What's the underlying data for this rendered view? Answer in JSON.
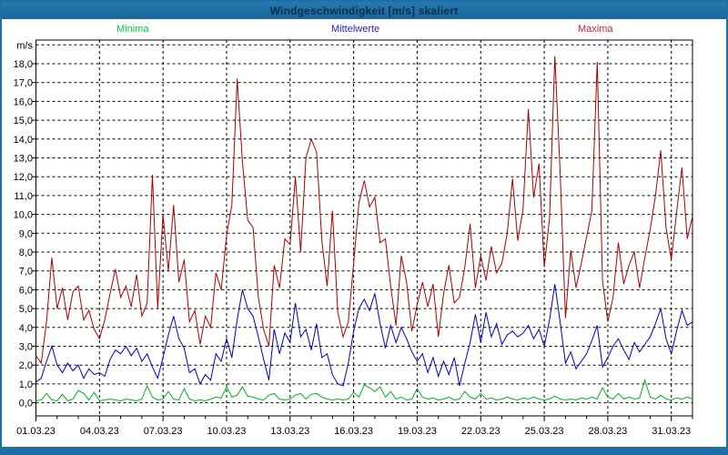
{
  "window": {
    "title": "Windgeschwindigkeit [m/s] skaliert"
  },
  "legend": [
    {
      "label": "Minima",
      "color": "#00cc44"
    },
    {
      "label": "Mittelwerte",
      "color": "#2222cc"
    },
    {
      "label": "Maxima",
      "color": "#cc2233"
    }
  ],
  "colors": {
    "frame": "#1e6fa5",
    "plot_border": "#000000",
    "gridline": "#000000",
    "background": "#ffffff"
  },
  "chart_data": {
    "type": "line",
    "title": "Windgeschwindigkeit [m/s] skaliert",
    "ylabel": "m/s",
    "y_unit_label": "m/s",
    "grid": "dashed both axes",
    "legend_position": "top",
    "ylim": [
      -0.7,
      19.3
    ],
    "y_gridlines": "every 1.0 from 0.0 to 19.0",
    "y_tick_labels": [
      "0,0",
      "1,0",
      "2,0",
      "3,0",
      "4,0",
      "5,0",
      "6,0",
      "7,0",
      "8,0",
      "9,0",
      "10,0",
      "11,0",
      "12,0",
      "13,0",
      "14,0",
      "15,0",
      "16,0",
      "17,0",
      "18,0"
    ],
    "x_range_days": [
      0,
      31
    ],
    "x_major_tick_interval_days": 3,
    "x_minor_tick_interval_days": 1,
    "x_tick_labels": [
      "01.03.23",
      "04.03.23",
      "07.03.23",
      "10.03.23",
      "13.03.23",
      "16.03.23",
      "19.03.23",
      "22.03.23",
      "25.03.23",
      "28.03.23",
      "31.03.23"
    ],
    "x_step_days": 0.25,
    "series": [
      {
        "name": "Minima",
        "color": "#00b022",
        "values": [
          0.1,
          0.15,
          0.5,
          0.15,
          0.1,
          0.45,
          0.1,
          0.2,
          0.65,
          0.5,
          0.15,
          0.55,
          0.1,
          0.15,
          0.2,
          0.15,
          0.1,
          0.2,
          0.15,
          0.1,
          0.2,
          0.9,
          0.3,
          0.15,
          0.2,
          0.6,
          0.2,
          0.15,
          0.75,
          0.2,
          0.1,
          0.15,
          0.1,
          0.2,
          0.3,
          0.25,
          0.85,
          0.3,
          0.4,
          0.85,
          0.35,
          0.3,
          0.2,
          0.15,
          0.4,
          0.5,
          0.2,
          0.15,
          0.2,
          0.4,
          0.5,
          0.2,
          0.45,
          0.5,
          0.3,
          0.2,
          0.15,
          0.2,
          0.15,
          0.2,
          0.55,
          0.3,
          0.95,
          0.8,
          0.6,
          0.85,
          0.3,
          0.6,
          0.2,
          0.3,
          0.15,
          0.2,
          0.75,
          0.3,
          0.2,
          0.25,
          0.15,
          0.2,
          0.3,
          0.15,
          0.2,
          0.6,
          0.3,
          0.2,
          0.5,
          0.2,
          0.25,
          0.15,
          0.2,
          0.3,
          0.2,
          0.15,
          0.25,
          0.2,
          0.3,
          0.2,
          0.15,
          0.2,
          0.35,
          0.2,
          0.15,
          0.2,
          0.15,
          0.25,
          0.2,
          0.3,
          0.2,
          0.8,
          0.3,
          0.2,
          0.5,
          0.2,
          0.3,
          0.2,
          0.25,
          1.2,
          0.3,
          0.2,
          0.4,
          0.2,
          0.15,
          0.25,
          0.2,
          0.3,
          0.2
        ]
      },
      {
        "name": "Mittelwerte",
        "color": "#0000bb",
        "values": [
          1.1,
          1.3,
          2.2,
          3.0,
          2.0,
          1.6,
          2.1,
          1.7,
          2.0,
          1.3,
          1.8,
          1.5,
          1.6,
          1.4,
          2.3,
          2.8,
          2.6,
          3.0,
          2.5,
          2.9,
          2.2,
          2.6,
          1.9,
          1.3,
          2.4,
          3.6,
          4.6,
          3.4,
          2.9,
          1.6,
          1.8,
          1.0,
          1.5,
          1.2,
          2.6,
          2.2,
          3.4,
          2.4,
          4.4,
          6.0,
          5.0,
          4.6,
          3.5,
          2.3,
          1.2,
          3.9,
          2.6,
          3.7,
          3.2,
          5.3,
          3.5,
          3.9,
          2.8,
          4.2,
          2.4,
          2.6,
          1.5,
          1.0,
          0.9,
          2.1,
          3.8,
          5.0,
          5.5,
          4.9,
          5.8,
          4.2,
          2.9,
          4.1,
          3.2,
          4.0,
          3.4,
          2.7,
          2.2,
          2.6,
          1.6,
          2.4,
          1.4,
          2.2,
          1.5,
          2.4,
          0.9,
          2.1,
          3.2,
          4.7,
          3.2,
          4.8,
          3.5,
          4.2,
          3.1,
          3.6,
          3.8,
          3.5,
          3.7,
          4.1,
          3.4,
          3.9,
          3.0,
          4.4,
          6.3,
          4.3,
          2.1,
          2.7,
          1.8,
          2.2,
          2.6,
          3.3,
          4.1,
          1.9,
          2.4,
          3.0,
          3.4,
          2.8,
          2.3,
          3.2,
          2.7,
          3.1,
          3.5,
          4.2,
          5.0,
          3.4,
          2.6,
          3.8,
          4.9,
          4.1,
          4.3
        ]
      },
      {
        "name": "Maxima",
        "color": "#aa0000",
        "values": [
          2.5,
          2.1,
          4.3,
          7.7,
          5.0,
          6.1,
          4.4,
          5.9,
          6.2,
          4.4,
          4.9,
          3.9,
          3.4,
          4.4,
          5.8,
          7.1,
          5.6,
          6.2,
          5.1,
          6.8,
          4.6,
          5.3,
          12.1,
          5.0,
          10.0,
          7.0,
          10.5,
          6.4,
          7.6,
          4.3,
          4.9,
          3.1,
          4.6,
          4.0,
          6.9,
          6.0,
          8.9,
          10.5,
          17.2,
          12.8,
          9.7,
          9.3,
          5.6,
          3.9,
          3.0,
          7.3,
          6.1,
          8.7,
          8.4,
          12.0,
          8.0,
          13.0,
          14.0,
          13.3,
          8.6,
          6.2,
          10.2,
          4.8,
          3.5,
          4.3,
          7.4,
          10.6,
          11.8,
          10.4,
          10.9,
          8.5,
          8.7,
          6.2,
          4.1,
          7.8,
          6.4,
          3.8,
          5.2,
          6.4,
          5.1,
          6.3,
          3.5,
          5.8,
          7.3,
          5.3,
          5.6,
          7.2,
          9.5,
          6.1,
          7.8,
          6.5,
          8.3,
          6.9,
          7.4,
          9.0,
          11.9,
          8.6,
          10.3,
          15.6,
          10.9,
          12.7,
          7.2,
          9.8,
          18.4,
          12.3,
          4.5,
          8.1,
          6.1,
          7.4,
          8.8,
          10.2,
          18.1,
          6.5,
          4.3,
          5.6,
          8.5,
          6.3,
          7.3,
          8.0,
          6.1,
          7.7,
          9.2,
          11.0,
          13.4,
          9.3,
          7.6,
          10.1,
          12.5,
          8.7,
          9.9
        ]
      }
    ]
  }
}
